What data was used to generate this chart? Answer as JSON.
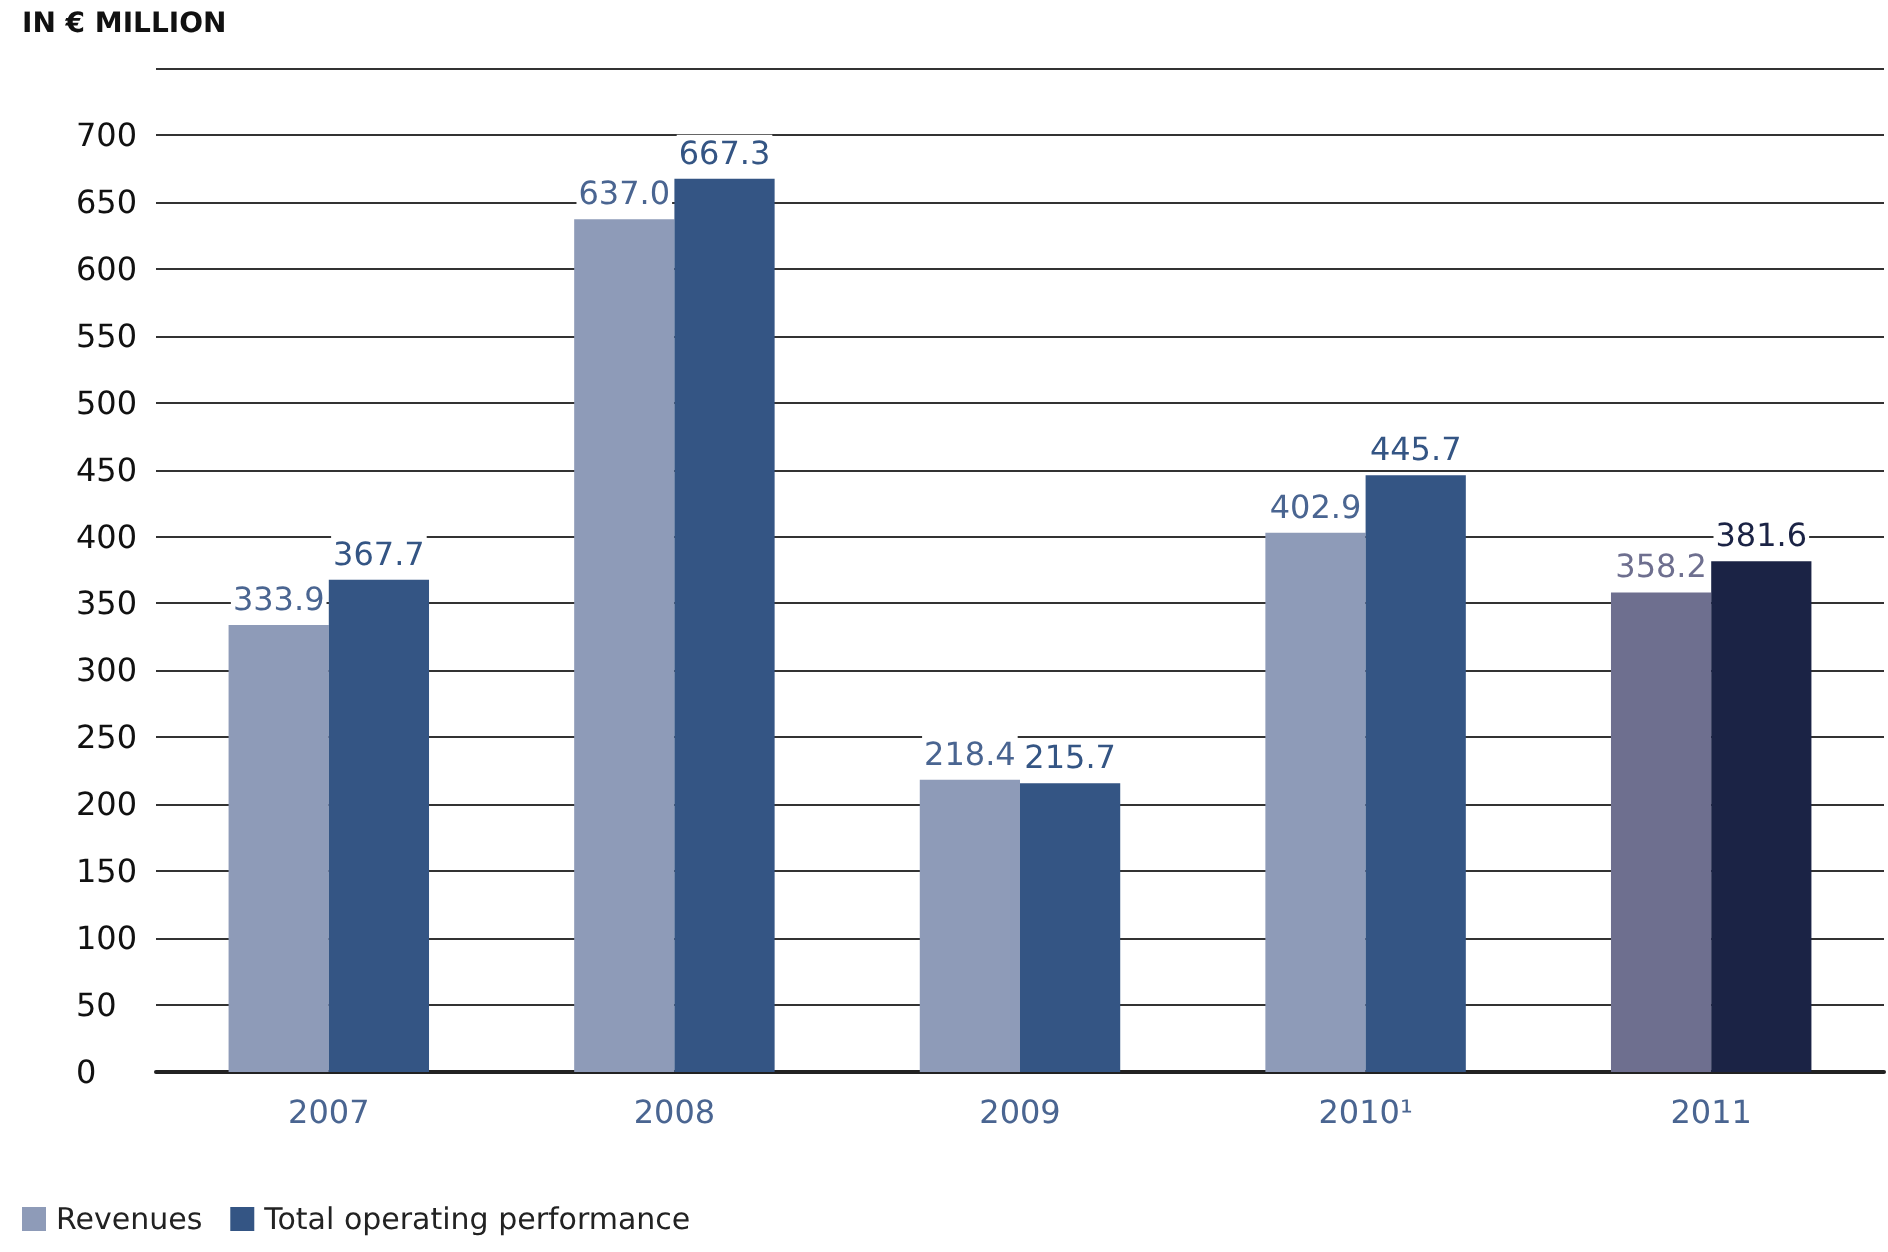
{
  "chart_data": {
    "type": "bar",
    "title": "IN € MILLION",
    "categories": [
      "2007",
      "2008",
      "2009",
      "2010¹",
      "2011"
    ],
    "series": [
      {
        "name": "Revenues",
        "color": "#8e9bb8",
        "colors": [
          "#8e9bb8",
          "#8e9bb8",
          "#8e9bb8",
          "#8e9bb8",
          "#6e6f8f"
        ],
        "values": [
          333.9,
          637.0,
          218.4,
          402.9,
          358.2
        ],
        "value_labels": [
          "333.9",
          "637.0",
          "218.4",
          "402.9",
          "358.2"
        ]
      },
      {
        "name": "Total operating performance",
        "color": "#345584",
        "colors": [
          "#345584",
          "#345584",
          "#345584",
          "#345584",
          "#1b2345"
        ],
        "values": [
          367.7,
          667.3,
          215.7,
          445.7,
          381.6
        ],
        "value_labels": [
          "367.7",
          "667.3",
          "215.7",
          "445.7",
          "381.6"
        ]
      }
    ],
    "ylim": [
      0,
      750
    ],
    "yticks": [
      0,
      50,
      100,
      150,
      200,
      250,
      300,
      350,
      400,
      450,
      500,
      550,
      600,
      650,
      700,
      {
        "value": 750,
        "label": null
      }
    ],
    "grid": "y",
    "legend": "bottom left"
  }
}
